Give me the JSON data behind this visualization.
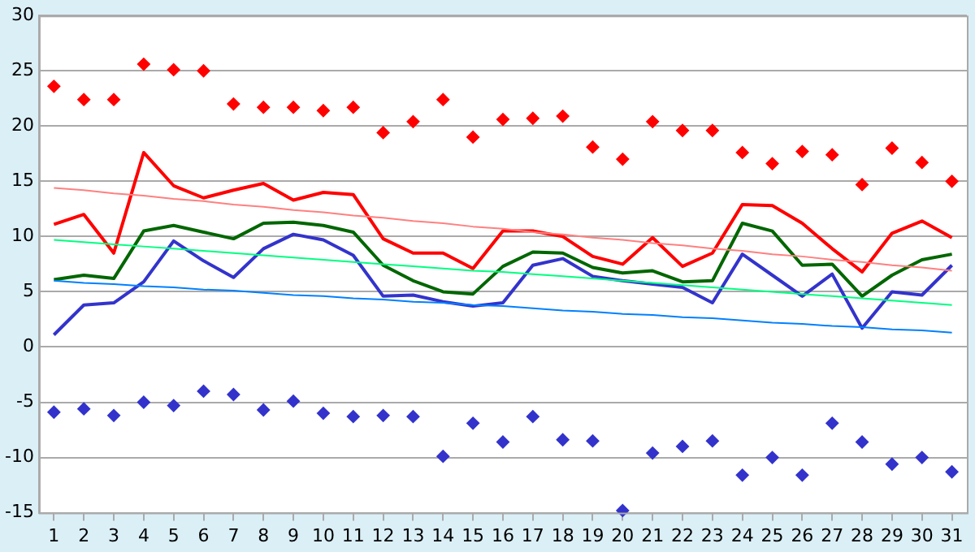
{
  "chart_data": {
    "type": "line",
    "x": [
      1,
      2,
      3,
      4,
      5,
      6,
      7,
      8,
      9,
      10,
      11,
      12,
      13,
      14,
      15,
      16,
      17,
      18,
      19,
      20,
      21,
      22,
      23,
      24,
      25,
      26,
      27,
      28,
      29,
      30,
      31
    ],
    "xlim": [
      0.5,
      31.5
    ],
    "xticks": [
      1,
      2,
      3,
      4,
      5,
      6,
      7,
      8,
      9,
      10,
      11,
      12,
      13,
      14,
      15,
      16,
      17,
      18,
      19,
      20,
      21,
      22,
      23,
      24,
      25,
      26,
      27,
      28,
      29,
      30,
      31
    ],
    "ylim": [
      -15,
      30
    ],
    "yticks": [
      -15,
      -10,
      -5,
      0,
      5,
      10,
      15,
      20,
      25,
      30
    ],
    "grid": "y",
    "legend": false,
    "marker": "none",
    "line_style": "solid",
    "series": [
      {
        "type": "scatter",
        "marker": "diamond",
        "color": "#ff0000",
        "values": [
          23.6,
          22.4,
          22.4,
          25.6,
          25.1,
          25,
          22,
          21.7,
          21.7,
          21.4,
          21.7,
          19.4,
          20.4,
          22.4,
          19,
          20.6,
          20.7,
          20.9,
          18.1,
          17,
          20.4,
          19.6,
          19.6,
          17.6,
          16.6,
          17.7,
          17.4,
          14.7,
          18,
          16.7,
          15
        ]
      },
      {
        "type": "scatter",
        "marker": "diamond",
        "color": "#3333cc",
        "values": [
          -5.9,
          -5.6,
          -6.2,
          -5,
          -5.3,
          -4,
          -4.3,
          -5.7,
          -4.9,
          -6,
          -6.3,
          -6.2,
          -6.3,
          -9.9,
          -6.9,
          -8.6,
          -6.3,
          -8.4,
          -8.5,
          -14.8,
          -9.6,
          -9,
          -8.5,
          -11.6,
          -10,
          -11.6,
          -6.9,
          -8.6,
          -10.6,
          -10,
          -11.3
        ]
      },
      {
        "type": "line",
        "color": "#ff8080",
        "values": [
          14.4,
          14.2,
          13.9,
          13.7,
          13.4,
          13.2,
          12.9,
          12.7,
          12.4,
          12.2,
          11.9,
          11.7,
          11.4,
          11.2,
          10.9,
          10.7,
          10.4,
          10.2,
          9.9,
          9.7,
          9.4,
          9.2,
          8.9,
          8.7,
          8.4,
          8.2,
          7.9,
          7.7,
          7.4,
          7.2,
          6.9
        ]
      },
      {
        "type": "line",
        "color": "#00ff80",
        "values": [
          9.7,
          9.5,
          9.3,
          9.1,
          8.9,
          8.7,
          8.5,
          8.3,
          8.1,
          7.9,
          7.7,
          7.5,
          7.3,
          7.1,
          6.9,
          6.8,
          6.6,
          6.4,
          6.2,
          6.0,
          5.8,
          5.6,
          5.4,
          5.2,
          5.0,
          4.8,
          4.6,
          4.4,
          4.2,
          4.0,
          3.8
        ]
      },
      {
        "type": "line",
        "color": "#0080ff",
        "values": [
          6.0,
          5.8,
          5.7,
          5.5,
          5.4,
          5.2,
          5.1,
          4.9,
          4.7,
          4.6,
          4.4,
          4.3,
          4.1,
          4.0,
          3.8,
          3.7,
          3.5,
          3.3,
          3.2,
          3.0,
          2.9,
          2.7,
          2.6,
          2.4,
          2.2,
          2.1,
          1.9,
          1.8,
          1.6,
          1.5,
          1.3
        ]
      },
      {
        "type": "line",
        "color": "#ff0000",
        "values": [
          11.1,
          12,
          8.5,
          17.6,
          14.6,
          13.5,
          14.2,
          14.8,
          13.3,
          14,
          13.8,
          9.8,
          8.5,
          8.5,
          7.1,
          10.5,
          10.5,
          10,
          8.2,
          7.5,
          9.9,
          7.3,
          8.5,
          12.9,
          12.8,
          11.2,
          8.9,
          6.8,
          10.3,
          11.4,
          9.9
        ]
      },
      {
        "type": "line",
        "color": "#006600",
        "values": [
          6.1,
          6.5,
          6.2,
          10.5,
          11,
          10.4,
          9.8,
          11.2,
          11.3,
          11,
          10.4,
          7.4,
          6,
          5,
          4.8,
          7.3,
          8.6,
          8.5,
          7.2,
          6.7,
          6.9,
          5.9,
          6,
          11.2,
          10.5,
          7.4,
          7.5,
          4.6,
          6.5,
          7.9,
          8.4
        ]
      },
      {
        "type": "line",
        "color": "#3333cc",
        "values": [
          1.1,
          3.8,
          4,
          5.9,
          9.6,
          7.8,
          6.3,
          8.9,
          10.2,
          9.7,
          8.3,
          4.6,
          4.7,
          4.1,
          3.7,
          4,
          7.4,
          8,
          6.4,
          6,
          5.7,
          5.4,
          4,
          8.4,
          6.5,
          4.6,
          6.6,
          1.7,
          5,
          4.7,
          7.4
        ]
      }
    ]
  }
}
